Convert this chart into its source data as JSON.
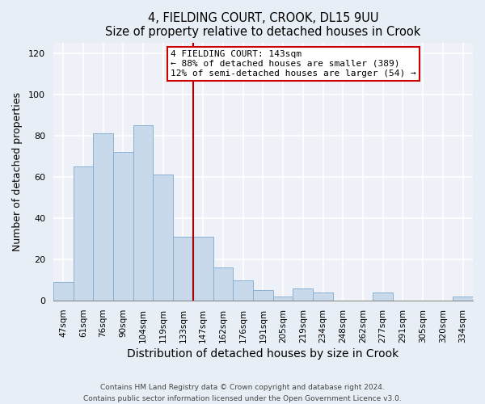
{
  "title": "4, FIELDING COURT, CROOK, DL15 9UU",
  "subtitle": "Size of property relative to detached houses in Crook",
  "xlabel": "Distribution of detached houses by size in Crook",
  "ylabel": "Number of detached properties",
  "categories": [
    "47sqm",
    "61sqm",
    "76sqm",
    "90sqm",
    "104sqm",
    "119sqm",
    "133sqm",
    "147sqm",
    "162sqm",
    "176sqm",
    "191sqm",
    "205sqm",
    "219sqm",
    "234sqm",
    "248sqm",
    "262sqm",
    "277sqm",
    "291sqm",
    "305sqm",
    "320sqm",
    "334sqm"
  ],
  "values": [
    9,
    65,
    81,
    72,
    85,
    61,
    31,
    31,
    16,
    10,
    5,
    2,
    6,
    4,
    0,
    0,
    4,
    0,
    0,
    0,
    2
  ],
  "bar_color": "#c8d9ec",
  "bar_edge_color": "#8ab0d0",
  "vline_index": 7,
  "vline_color": "#aa0000",
  "annotation_title": "4 FIELDING COURT: 143sqm",
  "annotation_line1": "← 88% of detached houses are smaller (389)",
  "annotation_line2": "12% of semi-detached houses are larger (54) →",
  "annotation_box_color": "#ffffff",
  "annotation_box_edge": "#cc0000",
  "ylim": [
    0,
    125
  ],
  "yticks": [
    0,
    20,
    40,
    60,
    80,
    100,
    120
  ],
  "footer1": "Contains HM Land Registry data © Crown copyright and database right 2024.",
  "footer2": "Contains public sector information licensed under the Open Government Licence v3.0.",
  "bg_color": "#e8eef5",
  "plot_bg_color": "#eef2f8",
  "grid_color": "#ffffff"
}
